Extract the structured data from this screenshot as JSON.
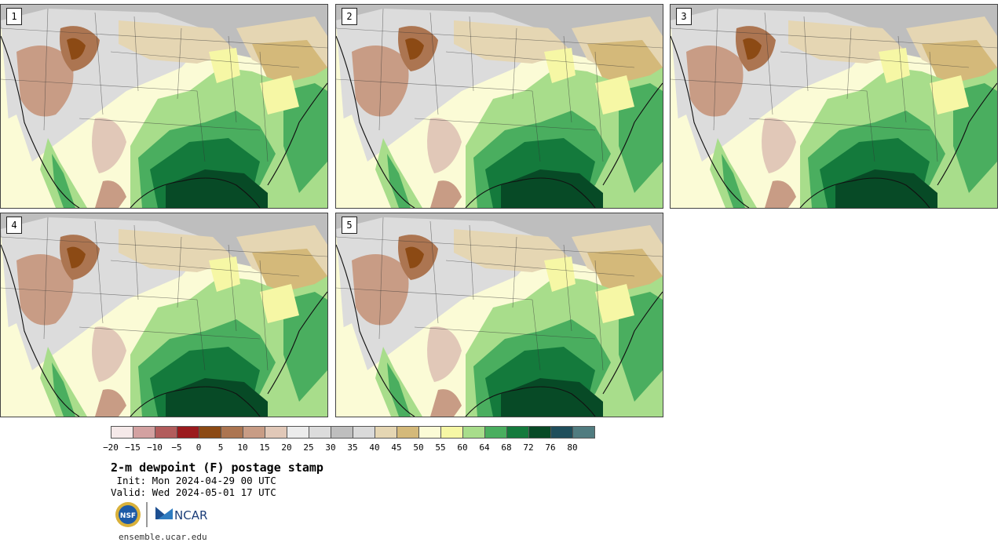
{
  "panels": [
    {
      "label": "1"
    },
    {
      "label": "2"
    },
    {
      "label": "3"
    },
    {
      "label": "4"
    },
    {
      "label": "5"
    }
  ],
  "colorbar": {
    "colors": [
      "#f5e9e9",
      "#d3a1a1",
      "#b25c5c",
      "#9b1b1e",
      "#8c4a14",
      "#ac7551",
      "#c89c85",
      "#e1c8b8",
      "#ececec",
      "#dcdcdc",
      "#bebebe",
      "#dadada",
      "#e5d6b3",
      "#d4b97a",
      "#fbfbd6",
      "#f6f7a5",
      "#a8dd8b",
      "#4aae5f",
      "#147a3c",
      "#074a26",
      "#1f4e5b",
      "#507c80"
    ],
    "ticks": [
      "−20",
      "−15",
      "−10",
      "−5",
      "0",
      "5",
      "10",
      "15",
      "20",
      "25",
      "30",
      "35",
      "40",
      "45",
      "50",
      "55",
      "60",
      "64",
      "68",
      "72",
      "76",
      "80"
    ]
  },
  "title": "2-m dewpoint (F) postage stamp",
  "init": " Init: Mon 2024-04-29 00 UTC",
  "valid": "Valid: Wed 2024-05-01 17 UTC",
  "logos": {
    "nsf": "NSF",
    "ncar": "NCAR"
  },
  "site": "ensemble.ucar.edu"
}
